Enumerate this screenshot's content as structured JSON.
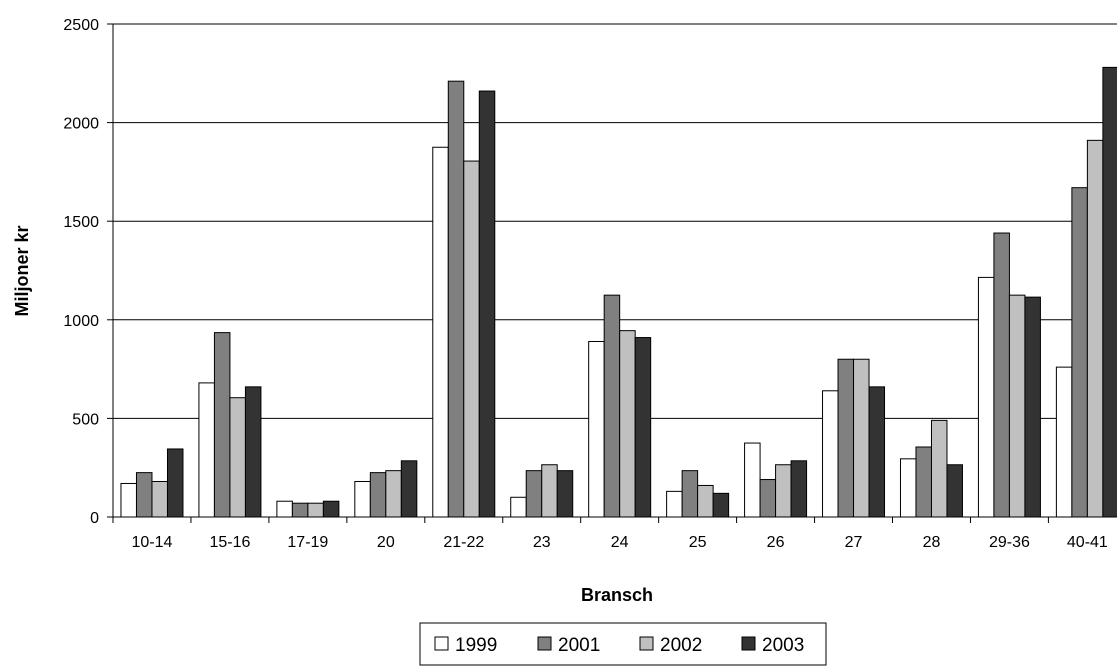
{
  "chart_data": {
    "type": "bar",
    "title": "",
    "xlabel": "Bransch",
    "ylabel": "Miljoner kr",
    "ylim": [
      0,
      2500
    ],
    "yticks": [
      0,
      500,
      1000,
      1500,
      2000,
      2500
    ],
    "grid": "horizontal",
    "legend_position": "bottom",
    "categories": [
      "10-14",
      "15-16",
      "17-19",
      "20",
      "21-22",
      "23",
      "24",
      "25",
      "26",
      "27",
      "28",
      "29-36",
      "40-41"
    ],
    "series": [
      {
        "name": "1999",
        "color": "#ffffff",
        "values": [
          170,
          680,
          80,
          180,
          1875,
          100,
          890,
          130,
          375,
          640,
          295,
          1215,
          760
        ]
      },
      {
        "name": "2001",
        "color": "#808080",
        "values": [
          225,
          935,
          70,
          225,
          2210,
          235,
          1125,
          235,
          190,
          800,
          355,
          1440,
          1670
        ]
      },
      {
        "name": "2002",
        "color": "#c0c0c0",
        "values": [
          180,
          605,
          70,
          235,
          1805,
          265,
          945,
          160,
          265,
          800,
          490,
          1125,
          1910
        ]
      },
      {
        "name": "2003",
        "color": "#333333",
        "values": [
          345,
          660,
          80,
          285,
          2160,
          235,
          910,
          120,
          285,
          660,
          265,
          1115,
          2280
        ]
      }
    ]
  }
}
